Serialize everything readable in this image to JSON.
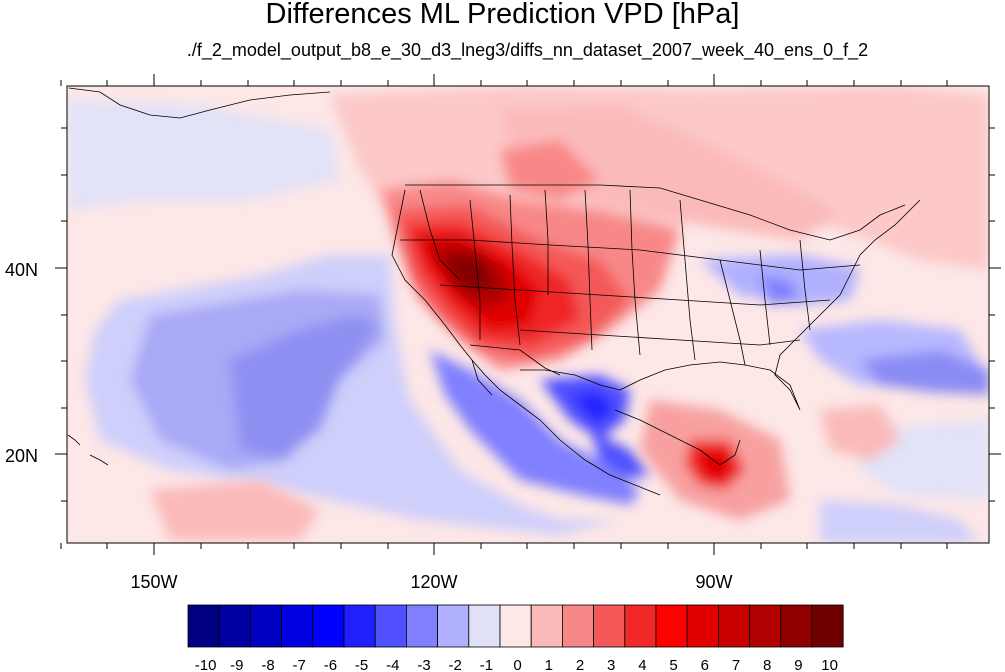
{
  "title": "Differences ML Prediction VPD [hPa]",
  "subtitle": "./f_2_model_output_b8_e_30_d3_lneg3/diffs_nn_dataset_2007_week_40_ens_0_f_2",
  "map": {
    "lon_range": [
      -159,
      -61
    ],
    "lat_range": [
      11,
      59
    ],
    "background_color": "#fde7e7",
    "x_tick_labels": [
      "150W",
      "120W",
      "90W"
    ],
    "y_tick_labels": [
      "40N",
      "20N"
    ]
  },
  "colorbar": {
    "labels": [
      "-10",
      "-9",
      "-8",
      "-7",
      "-6",
      "-5",
      "-4",
      "-3",
      "-2",
      "-1",
      "0",
      "1",
      "2",
      "3",
      "4",
      "5",
      "6",
      "7",
      "8",
      "9",
      "10"
    ],
    "colors": [
      "#000080",
      "#0000a0",
      "#0000c0",
      "#0000e0",
      "#0000ff",
      "#2020ff",
      "#5050ff",
      "#8080ff",
      "#b0b0ff",
      "#e0e0f8",
      "#fde7e7",
      "#fbbaba",
      "#f88888",
      "#f45858",
      "#f02828",
      "#ff0000",
      "#e00000",
      "#c80000",
      "#b00000",
      "#900000",
      "#700000"
    ]
  }
}
